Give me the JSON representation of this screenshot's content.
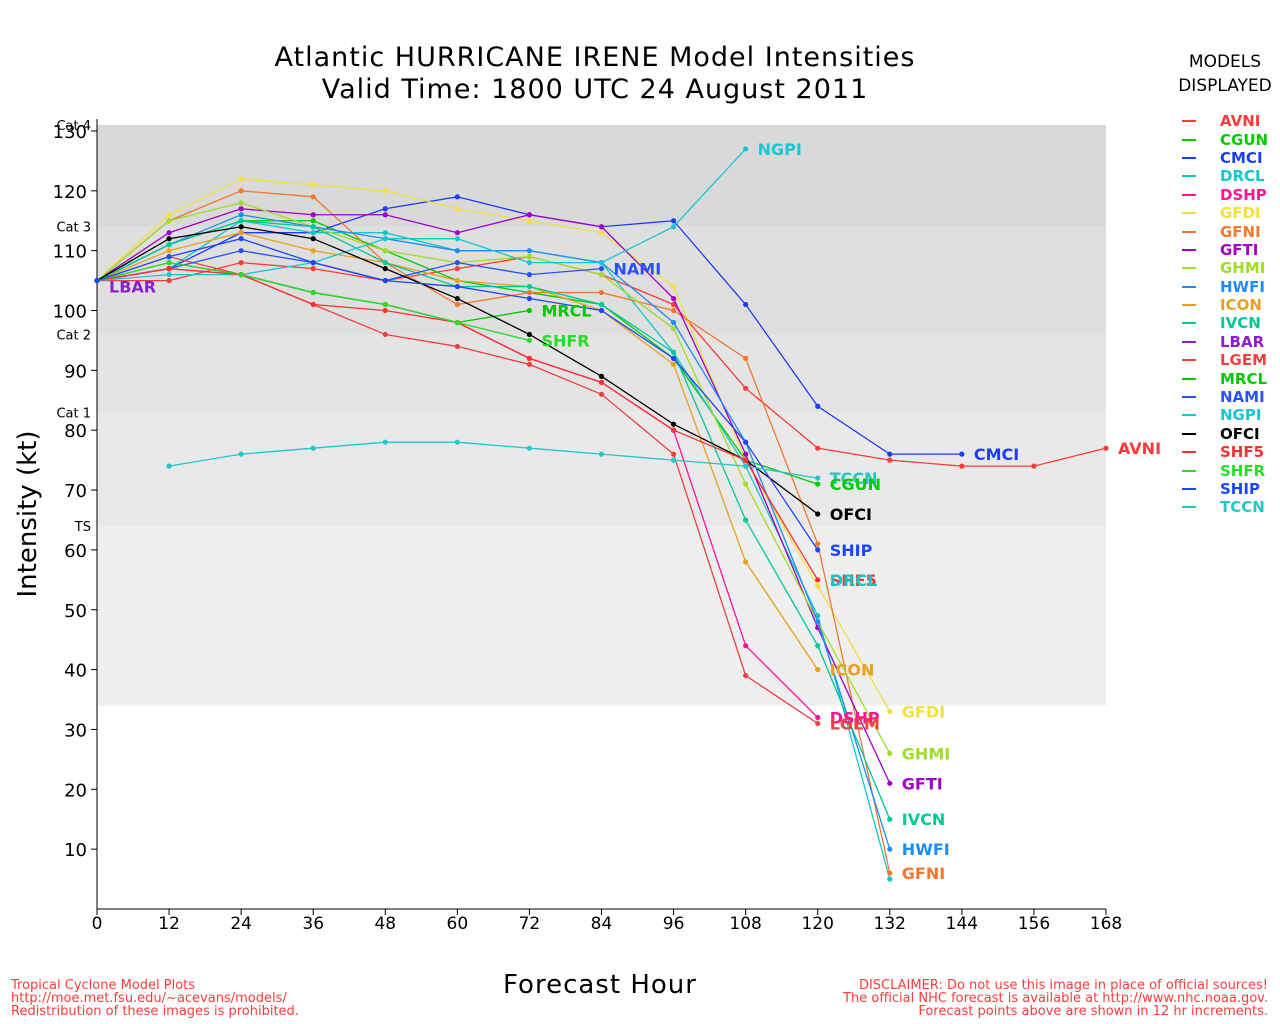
{
  "chart_data": {
    "type": "line",
    "title": "Atlantic HURRICANE IRENE Model Intensities",
    "subtitle": "Valid Time: 1800 UTC 24 August 2011",
    "xlabel": "Forecast Hour",
    "ylabel": "Intensity (kt)",
    "xlim": [
      0,
      168
    ],
    "ylim": [
      0,
      132
    ],
    "xticks": [
      0,
      12,
      24,
      36,
      48,
      60,
      72,
      84,
      96,
      108,
      120,
      132,
      144,
      156,
      168
    ],
    "yticks": [
      10,
      20,
      30,
      40,
      50,
      60,
      70,
      80,
      90,
      100,
      110,
      120,
      130
    ],
    "categories": [
      {
        "label": "TS",
        "min": 34,
        "max": 64,
        "color": "#efefef"
      },
      {
        "label": "Cat 1",
        "min": 64,
        "max": 83,
        "color": "#e9e9e9"
      },
      {
        "label": "Cat 2",
        "min": 83,
        "max": 96,
        "color": "#e4e4e4"
      },
      {
        "label": "Cat 3",
        "min": 96,
        "max": 114,
        "color": "#dfdfdf"
      },
      {
        "label": "Cat 4",
        "min": 114,
        "max": 131,
        "color": "#d9d9d9"
      }
    ],
    "legend_title": [
      "MODELS",
      "DISPLAYED"
    ],
    "legend_position": "right",
    "series": [
      {
        "name": "AVNI",
        "color": "#ff3a3a",
        "x": [
          0,
          12,
          24,
          36,
          48,
          60,
          72,
          84,
          96,
          108,
          120,
          132,
          144,
          156,
          168
        ],
        "y": [
          105,
          105,
          108,
          107,
          105,
          107,
          109,
          106,
          101,
          87,
          77,
          75,
          74,
          74,
          77
        ]
      },
      {
        "name": "CGUN",
        "color": "#00cc00",
        "x": [
          0,
          12,
          24,
          36,
          48,
          60,
          72,
          84,
          96,
          108,
          120
        ],
        "y": [
          105,
          111,
          115,
          115,
          110,
          105,
          103,
          101,
          92,
          75,
          71
        ]
      },
      {
        "name": "CMCI",
        "color": "#1e3cff",
        "x": [
          0,
          12,
          24,
          36,
          48,
          60,
          72,
          84,
          96,
          108,
          120,
          132,
          144
        ],
        "y": [
          105,
          107,
          113,
          113,
          117,
          119,
          116,
          114,
          115,
          101,
          84,
          76,
          76
        ]
      },
      {
        "name": "DRCL",
        "color": "#10c8c8",
        "x": [
          0,
          12,
          24,
          36,
          48,
          60,
          72,
          84,
          96,
          108,
          120,
          132
        ],
        "y": [
          105,
          107,
          115,
          113,
          113,
          110,
          110,
          108,
          93,
          74,
          49,
          5
        ]
      },
      {
        "name": "DSHP",
        "color": "#ff1493",
        "x": [
          0,
          12,
          24,
          36,
          48,
          60,
          72,
          84,
          96,
          108,
          120
        ],
        "y": [
          105,
          107,
          106,
          103,
          101,
          98,
          92,
          88,
          80,
          44,
          32
        ]
      },
      {
        "name": "GFDI",
        "color": "#f0e040",
        "x": [
          0,
          12,
          24,
          36,
          48,
          60,
          72,
          84,
          96,
          108,
          120,
          132
        ],
        "y": [
          105,
          116,
          122,
          121,
          120,
          117,
          115,
          113,
          104,
          75,
          54,
          33
        ]
      },
      {
        "name": "GFNI",
        "color": "#f07830",
        "x": [
          0,
          12,
          24,
          36,
          48,
          60,
          72,
          84,
          96,
          108,
          120,
          132
        ],
        "y": [
          105,
          115,
          120,
          119,
          108,
          101,
          103,
          103,
          100,
          92,
          61,
          6
        ]
      },
      {
        "name": "GFTI",
        "color": "#a000c8",
        "x": [
          0,
          12,
          24,
          36,
          48,
          60,
          72,
          84,
          96,
          108,
          120,
          132
        ],
        "y": [
          105,
          113,
          117,
          116,
          116,
          113,
          116,
          114,
          102,
          76,
          47,
          21
        ]
      },
      {
        "name": "GHMI",
        "color": "#a0dc28",
        "x": [
          0,
          12,
          24,
          36,
          48,
          60,
          72,
          84,
          96,
          108,
          120,
          132
        ],
        "y": [
          105,
          115,
          118,
          114,
          110,
          108,
          109,
          106,
          97,
          71,
          48,
          26
        ]
      },
      {
        "name": "HWFI",
        "color": "#1e8cff",
        "x": [
          0,
          12,
          24,
          36,
          48,
          60,
          72,
          84,
          96,
          108,
          120,
          132
        ],
        "y": [
          105,
          111,
          116,
          114,
          112,
          110,
          110,
          108,
          98,
          78,
          48,
          10
        ]
      },
      {
        "name": "ICON",
        "color": "#e8a020",
        "x": [
          0,
          12,
          24,
          36,
          48,
          60,
          72,
          84,
          96,
          108,
          120
        ],
        "y": [
          105,
          110,
          113,
          110,
          108,
          105,
          104,
          100,
          91,
          58,
          40
        ]
      },
      {
        "name": "IVCN",
        "color": "#00c896",
        "x": [
          0,
          12,
          24,
          36,
          48,
          60,
          72,
          84,
          96,
          108,
          120,
          132
        ],
        "y": [
          105,
          111,
          115,
          114,
          108,
          104,
          104,
          101,
          93,
          65,
          44,
          15
        ]
      },
      {
        "name": "LBAR",
        "color": "#8c1ed2",
        "x": [
          0
        ],
        "y": [
          105
        ]
      },
      {
        "name": "LGEM",
        "color": "#f04040",
        "x": [
          0,
          12,
          24,
          36,
          48,
          60,
          72,
          84,
          96,
          108,
          120
        ],
        "y": [
          105,
          109,
          106,
          101,
          96,
          94,
          91,
          86,
          76,
          39,
          31
        ]
      },
      {
        "name": "MRCL",
        "color": "#00c800",
        "x": [
          0,
          12,
          24,
          36,
          48,
          60,
          72
        ],
        "y": [
          105,
          108,
          106,
          103,
          101,
          98,
          100
        ]
      },
      {
        "name": "NAMI",
        "color": "#2850ff",
        "x": [
          0,
          12,
          24,
          36,
          48,
          60,
          72,
          84
        ],
        "y": [
          105,
          107,
          110,
          108,
          105,
          108,
          106,
          107
        ]
      },
      {
        "name": "NGPI",
        "color": "#14c8d2",
        "x": [
          0,
          12,
          24,
          36,
          48,
          60,
          72,
          84,
          96,
          108
        ],
        "y": [
          105,
          106,
          106,
          108,
          112,
          112,
          108,
          108,
          114,
          127
        ]
      },
      {
        "name": "OFCI",
        "color": "#000000",
        "x": [
          0,
          12,
          24,
          36,
          48,
          60,
          72,
          84,
          96,
          108,
          120
        ],
        "y": [
          105,
          112,
          114,
          112,
          107,
          102,
          96,
          89,
          81,
          75,
          66
        ]
      },
      {
        "name": "SHF5",
        "color": "#ff3030",
        "x": [
          0,
          12,
          24,
          36,
          48,
          60,
          72,
          84,
          96,
          108,
          120
        ],
        "y": [
          105,
          107,
          106,
          101,
          100,
          98,
          92,
          88,
          80,
          75,
          55
        ]
      },
      {
        "name": "SHFR",
        "color": "#28dc28",
        "x": [
          0,
          12,
          24,
          36,
          48,
          60,
          72
        ],
        "y": [
          105,
          108,
          106,
          103,
          101,
          98,
          95
        ]
      },
      {
        "name": "SHIP",
        "color": "#1e46ff",
        "x": [
          0,
          12,
          24,
          36,
          48,
          60,
          72,
          84,
          96,
          108,
          120
        ],
        "y": [
          105,
          109,
          112,
          108,
          105,
          104,
          102,
          100,
          92,
          78,
          60
        ]
      },
      {
        "name": "TCCN",
        "color": "#20c8c8",
        "x": [
          12,
          24,
          36,
          48,
          60,
          72,
          84,
          96,
          108,
          120
        ],
        "y": [
          74,
          76,
          77,
          78,
          78,
          77,
          76,
          75,
          74,
          72
        ]
      }
    ],
    "annotations": [
      {
        "text": "NGPI",
        "color": "#14c8d2",
        "x": 110,
        "y": 127
      },
      {
        "text": "NAMI",
        "color": "#2850ff",
        "x": 86,
        "y": 107
      },
      {
        "text": "MRCL",
        "color": "#00c800",
        "x": 74,
        "y": 100
      },
      {
        "text": "SHFR",
        "color": "#28dc28",
        "x": 74,
        "y": 95
      },
      {
        "text": "LBAR",
        "color": "#8c1ed2",
        "x": 2,
        "y": 104
      },
      {
        "text": "CMCI",
        "color": "#1e3cff",
        "x": 146,
        "y": 76
      },
      {
        "text": "AVNI",
        "color": "#ff3a3a",
        "x": 170,
        "y": 77
      },
      {
        "text": "TCCN",
        "color": "#20c8c8",
        "x": 122,
        "y": 72
      },
      {
        "text": "CGUN",
        "color": "#00cc00",
        "x": 122,
        "y": 71
      },
      {
        "text": "OFCI",
        "color": "#000000",
        "x": 122,
        "y": 66
      },
      {
        "text": "SHIP",
        "color": "#1e46ff",
        "x": 122,
        "y": 60
      },
      {
        "text": "SHF5",
        "color": "#ff3030",
        "x": 122,
        "y": 55
      },
      {
        "text": "DRCL",
        "color": "#10c8c8",
        "x": 122,
        "y": 55
      },
      {
        "text": "ICON",
        "color": "#e8a020",
        "x": 122,
        "y": 40
      },
      {
        "text": "DSHP",
        "color": "#ff1493",
        "x": 122,
        "y": 32
      },
      {
        "text": "LGEM",
        "color": "#f04040",
        "x": 122,
        "y": 31
      },
      {
        "text": "GFDI",
        "color": "#f0e040",
        "x": 134,
        "y": 33
      },
      {
        "text": "GHMI",
        "color": "#a0dc28",
        "x": 134,
        "y": 26
      },
      {
        "text": "GFTI",
        "color": "#a000c8",
        "x": 134,
        "y": 21
      },
      {
        "text": "IVCN",
        "color": "#00c896",
        "x": 134,
        "y": 15
      },
      {
        "text": "HWFI",
        "color": "#1e8cff",
        "x": 134,
        "y": 10
      },
      {
        "text": "GFNI",
        "color": "#f07830",
        "x": 134,
        "y": 6
      }
    ]
  },
  "footer_left": [
    "Tropical Cyclone Model Plots",
    "http://moe.met.fsu.edu/~acevans/models/",
    "Redistribution of these images is prohibited."
  ],
  "footer_right": [
    "DISCLAIMER: Do not use this image in place of official sources!",
    "The official NHC forecast is available at http://www.nhc.noaa.gov.",
    "Forecast points above are shown in 12 hr increments."
  ]
}
